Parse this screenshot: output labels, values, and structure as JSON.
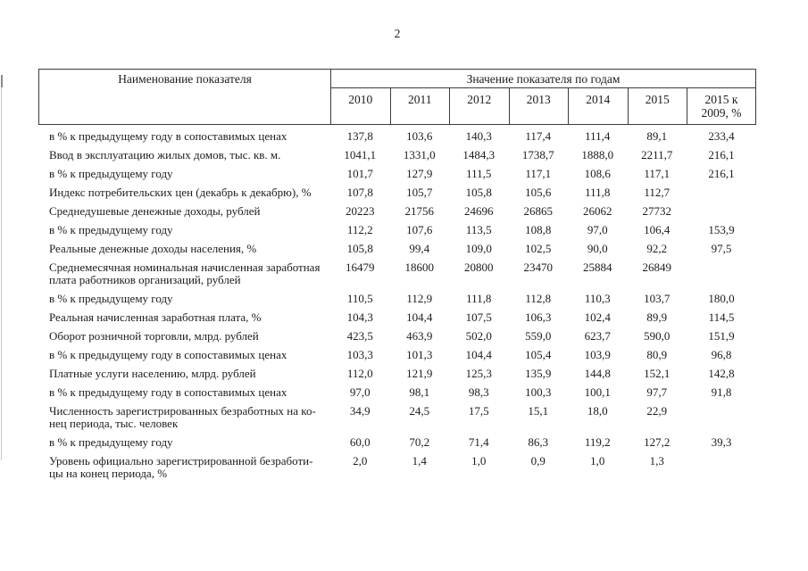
{
  "page": {
    "number": "2"
  },
  "colors": {
    "ink": "#1c1c1c",
    "table_border": "#3b3b3b",
    "scan_edge": "#c9c9c9"
  },
  "table": {
    "header": {
      "name_col": "Наименование показателя",
      "value_col": "Значение показателя по годам",
      "year_cols": [
        "2010",
        "2011",
        "2012",
        "2013",
        "2014",
        "2015",
        "2015 к\n2009, %"
      ]
    },
    "rows": [
      {
        "label": "в % к предыдущему году в сопоставимых ценах",
        "values": [
          "137,8",
          "103,6",
          "140,3",
          "117,4",
          "111,4",
          "89,1",
          "233,4"
        ]
      },
      {
        "label": "Ввод в эксплуатацию жилых домов, тыс. кв. м.",
        "values": [
          "1041,1",
          "1331,0",
          "1484,3",
          "1738,7",
          "1888,0",
          "2211,7",
          "216,1"
        ]
      },
      {
        "label": "в % к предыдущему году",
        "values": [
          "101,7",
          "127,9",
          "111,5",
          "117,1",
          "108,6",
          "117,1",
          "216,1"
        ]
      },
      {
        "label": "Индекс потребительских цен (декабрь к декабрю), %",
        "values": [
          "107,8",
          "105,7",
          "105,8",
          "105,6",
          "111,8",
          "112,7",
          ""
        ]
      },
      {
        "label": "Среднедушевые денежные доходы, рублей",
        "values": [
          "20223",
          "21756",
          "24696",
          "26865",
          "26062",
          "27732",
          ""
        ]
      },
      {
        "label": "в % к предыдущему году",
        "values": [
          "112,2",
          "107,6",
          "113,5",
          "108,8",
          "97,0",
          "106,4",
          "153,9"
        ]
      },
      {
        "label": "Реальные денежные доходы населения, %",
        "values": [
          "105,8",
          "99,4",
          "109,0",
          "102,5",
          "90,0",
          "92,2",
          "97,5"
        ]
      },
      {
        "label": "Среднемесячная номинальная начисленная заработная\nплата работников организаций, рублей",
        "values": [
          "16479",
          "18600",
          "20800",
          "23470",
          "25884",
          "26849",
          ""
        ]
      },
      {
        "label": "в % к предыдущему году",
        "values": [
          "110,5",
          "112,9",
          "111,8",
          "112,8",
          "110,3",
          "103,7",
          "180,0"
        ]
      },
      {
        "label": "Реальная начисленная заработная плата, %",
        "values": [
          "104,3",
          "104,4",
          "107,5",
          "106,3",
          "102,4",
          "89,9",
          "114,5"
        ]
      },
      {
        "label": "Оборот розничной торговли, млрд. рублей",
        "values": [
          "423,5",
          "463,9",
          "502,0",
          "559,0",
          "623,7",
          "590,0",
          "151,9"
        ]
      },
      {
        "label": "в % к предыдущему году в сопоставимых ценах",
        "values": [
          "103,3",
          "101,3",
          "104,4",
          "105,4",
          "103,9",
          "80,9",
          "96,8"
        ]
      },
      {
        "label": "Платные услуги населению, млрд. рублей",
        "values": [
          "112,0",
          "121,9",
          "125,3",
          "135,9",
          "144,8",
          "152,1",
          "142,8"
        ]
      },
      {
        "label": "в % к предыдущему году в сопоставимых ценах",
        "values": [
          "97,0",
          "98,1",
          "98,3",
          "100,3",
          "100,1",
          "97,7",
          "91,8"
        ]
      },
      {
        "label": "Численность зарегистрированных безработных на ко-\nнец периода, тыс. человек",
        "values": [
          "34,9",
          "24,5",
          "17,5",
          "15,1",
          "18,0",
          "22,9",
          ""
        ]
      },
      {
        "label": "в % к предыдущему году",
        "values": [
          "60,0",
          "70,2",
          "71,4",
          "86,3",
          "119,2",
          "127,2",
          "39,3"
        ]
      },
      {
        "label": "Уровень официально зарегистрированной безработи-\nцы на конец периода, %",
        "values": [
          "2,0",
          "1,4",
          "1,0",
          "0,9",
          "1,0",
          "1,3",
          ""
        ]
      }
    ]
  }
}
